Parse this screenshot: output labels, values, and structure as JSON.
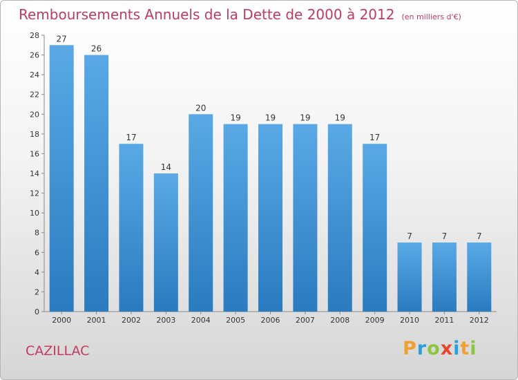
{
  "header": {
    "title": "Remboursements Annuels de la Dette de 2000 à 2012",
    "unit": "(en milliers d'€)"
  },
  "footer": {
    "commune": "CAZILLAC",
    "brand": "Proxiti"
  },
  "colors": {
    "title": "#c03a63",
    "bar_light": "#5aa9e6",
    "bar_dark": "#2a7bbf",
    "brand_letters": [
      "#f0a030",
      "#2aa0d8",
      "#8cc63f",
      "#e8452c",
      "#2aa0d8",
      "#f0a030",
      "#8cc63f"
    ]
  },
  "chart_data": {
    "type": "bar",
    "categories": [
      "2000",
      "2001",
      "2002",
      "2003",
      "2004",
      "2005",
      "2006",
      "2007",
      "2008",
      "2009",
      "2010",
      "2011",
      "2012"
    ],
    "values": [
      27,
      26,
      17,
      14,
      20,
      19,
      19,
      19,
      19,
      17,
      7,
      7,
      7
    ],
    "title": "Remboursements Annuels de la Dette de 2000 à 2012",
    "ylim": [
      0,
      28
    ],
    "yticks": [
      0,
      2,
      4,
      6,
      8,
      10,
      12,
      14,
      16,
      18,
      20,
      22,
      24,
      26,
      28
    ],
    "grid": false,
    "legend": "none"
  }
}
